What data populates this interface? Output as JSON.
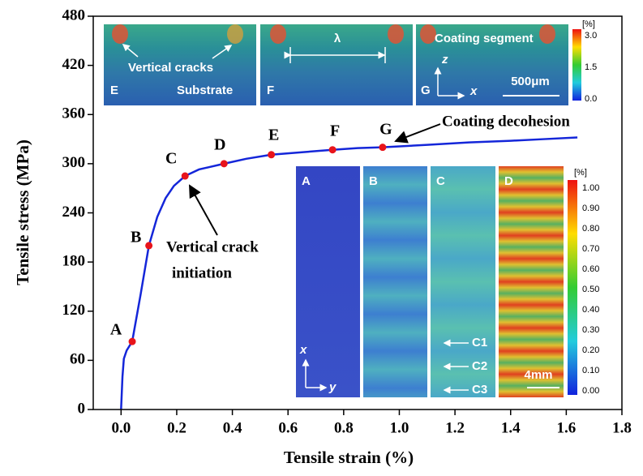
{
  "chart_data": {
    "type": "line",
    "xlabel": "Tensile strain (%)",
    "ylabel": "Tensile stress (MPa)",
    "xlim": [
      -0.1,
      1.8
    ],
    "ylim": [
      0,
      480
    ],
    "xticks": [
      {
        "value": 0,
        "label": "0.0"
      },
      0.2,
      0.4,
      0.6,
      0.8,
      {
        "value": 1,
        "label": "1.0"
      },
      1.2,
      1.4,
      1.6,
      1.8
    ],
    "yticks": [
      0,
      60,
      120,
      180,
      240,
      300,
      360,
      420,
      480
    ],
    "series": [
      {
        "color": "#1426d9",
        "x": [
          0,
          0.005,
          0.01,
          0.02,
          0.04,
          0.07,
          0.1,
          0.13,
          0.16,
          0.19,
          0.23,
          0.28,
          0.37,
          0.45,
          0.54,
          0.65,
          0.76,
          0.85,
          0.94,
          1.1,
          1.25,
          1.4,
          1.52,
          1.64
        ],
        "values": [
          0,
          40,
          62,
          72,
          83,
          140,
          200,
          235,
          258,
          273,
          285,
          293,
          300,
          306,
          311,
          314,
          317,
          319,
          320,
          323,
          326,
          328,
          330,
          332
        ]
      }
    ],
    "points": {
      "color": "#e8141b",
      "labels": [
        "A",
        "B",
        "C",
        "D",
        "E",
        "F",
        "G"
      ],
      "x": [
        0.04,
        0.1,
        0.23,
        0.37,
        0.54,
        0.76,
        0.94
      ],
      "values": [
        83,
        200,
        285,
        300,
        311,
        317,
        320
      ]
    },
    "annotations": [
      "Vertical crack",
      "initiation",
      "Coating decohesion"
    ]
  },
  "insets": {
    "top": {
      "panel_labels": [
        "E",
        "F",
        "G"
      ],
      "vertical_cracks": "Vertical cracks",
      "substrate": "Substrate",
      "lambda": "λ",
      "coating_segment": "Coating segment",
      "axis_z": "z",
      "axis_x": "x",
      "scale": "500μm",
      "colorbar_unit": "[%]",
      "colorbar_ticks": [
        "3.0",
        "1.5",
        "0.0"
      ]
    },
    "bottom": {
      "panel_labels": [
        "A",
        "B",
        "C",
        "D"
      ],
      "markers": [
        "C1",
        "C2",
        "C3"
      ],
      "axis_x": "x",
      "axis_y": "y",
      "scale": "4mm",
      "colorbar_unit": "[%]",
      "colorbar_ticks": [
        "1.00",
        "0.90",
        "0.80",
        "0.70",
        "0.60",
        "0.50",
        "0.40",
        "0.30",
        "0.20",
        "0.10",
        "0.00"
      ]
    }
  }
}
